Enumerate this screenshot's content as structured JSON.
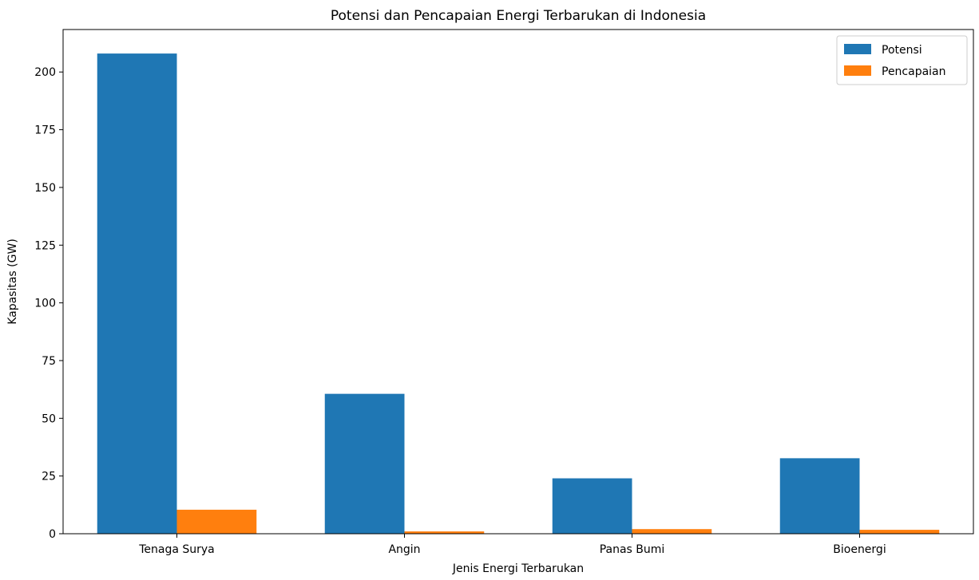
{
  "chart_data": {
    "type": "bar",
    "title": "Potensi dan Pencapaian Energi Terbarukan di Indonesia",
    "xlabel": "Jenis Energi Terbarukan",
    "ylabel": "Kapasitas (GW)",
    "categories": [
      "Tenaga Surya",
      "Angin",
      "Panas Bumi",
      "Bioenergi"
    ],
    "series": [
      {
        "name": "Potensi",
        "values": [
          208,
          60.6,
          24,
          32.7
        ],
        "color": "#1f77b4"
      },
      {
        "name": "Pencapaian",
        "values": [
          10.4,
          1,
          2,
          1.7
        ],
        "color": "#ff7f0e"
      }
    ],
    "ylim": [
      0,
      218.4
    ],
    "yticks": [
      0,
      25,
      50,
      75,
      100,
      125,
      150,
      175,
      200
    ],
    "ytick_labels": [
      "0",
      "25",
      "50",
      "75",
      "100",
      "125",
      "150",
      "175",
      "200"
    ],
    "grid": false,
    "legend_position": "top-right"
  }
}
